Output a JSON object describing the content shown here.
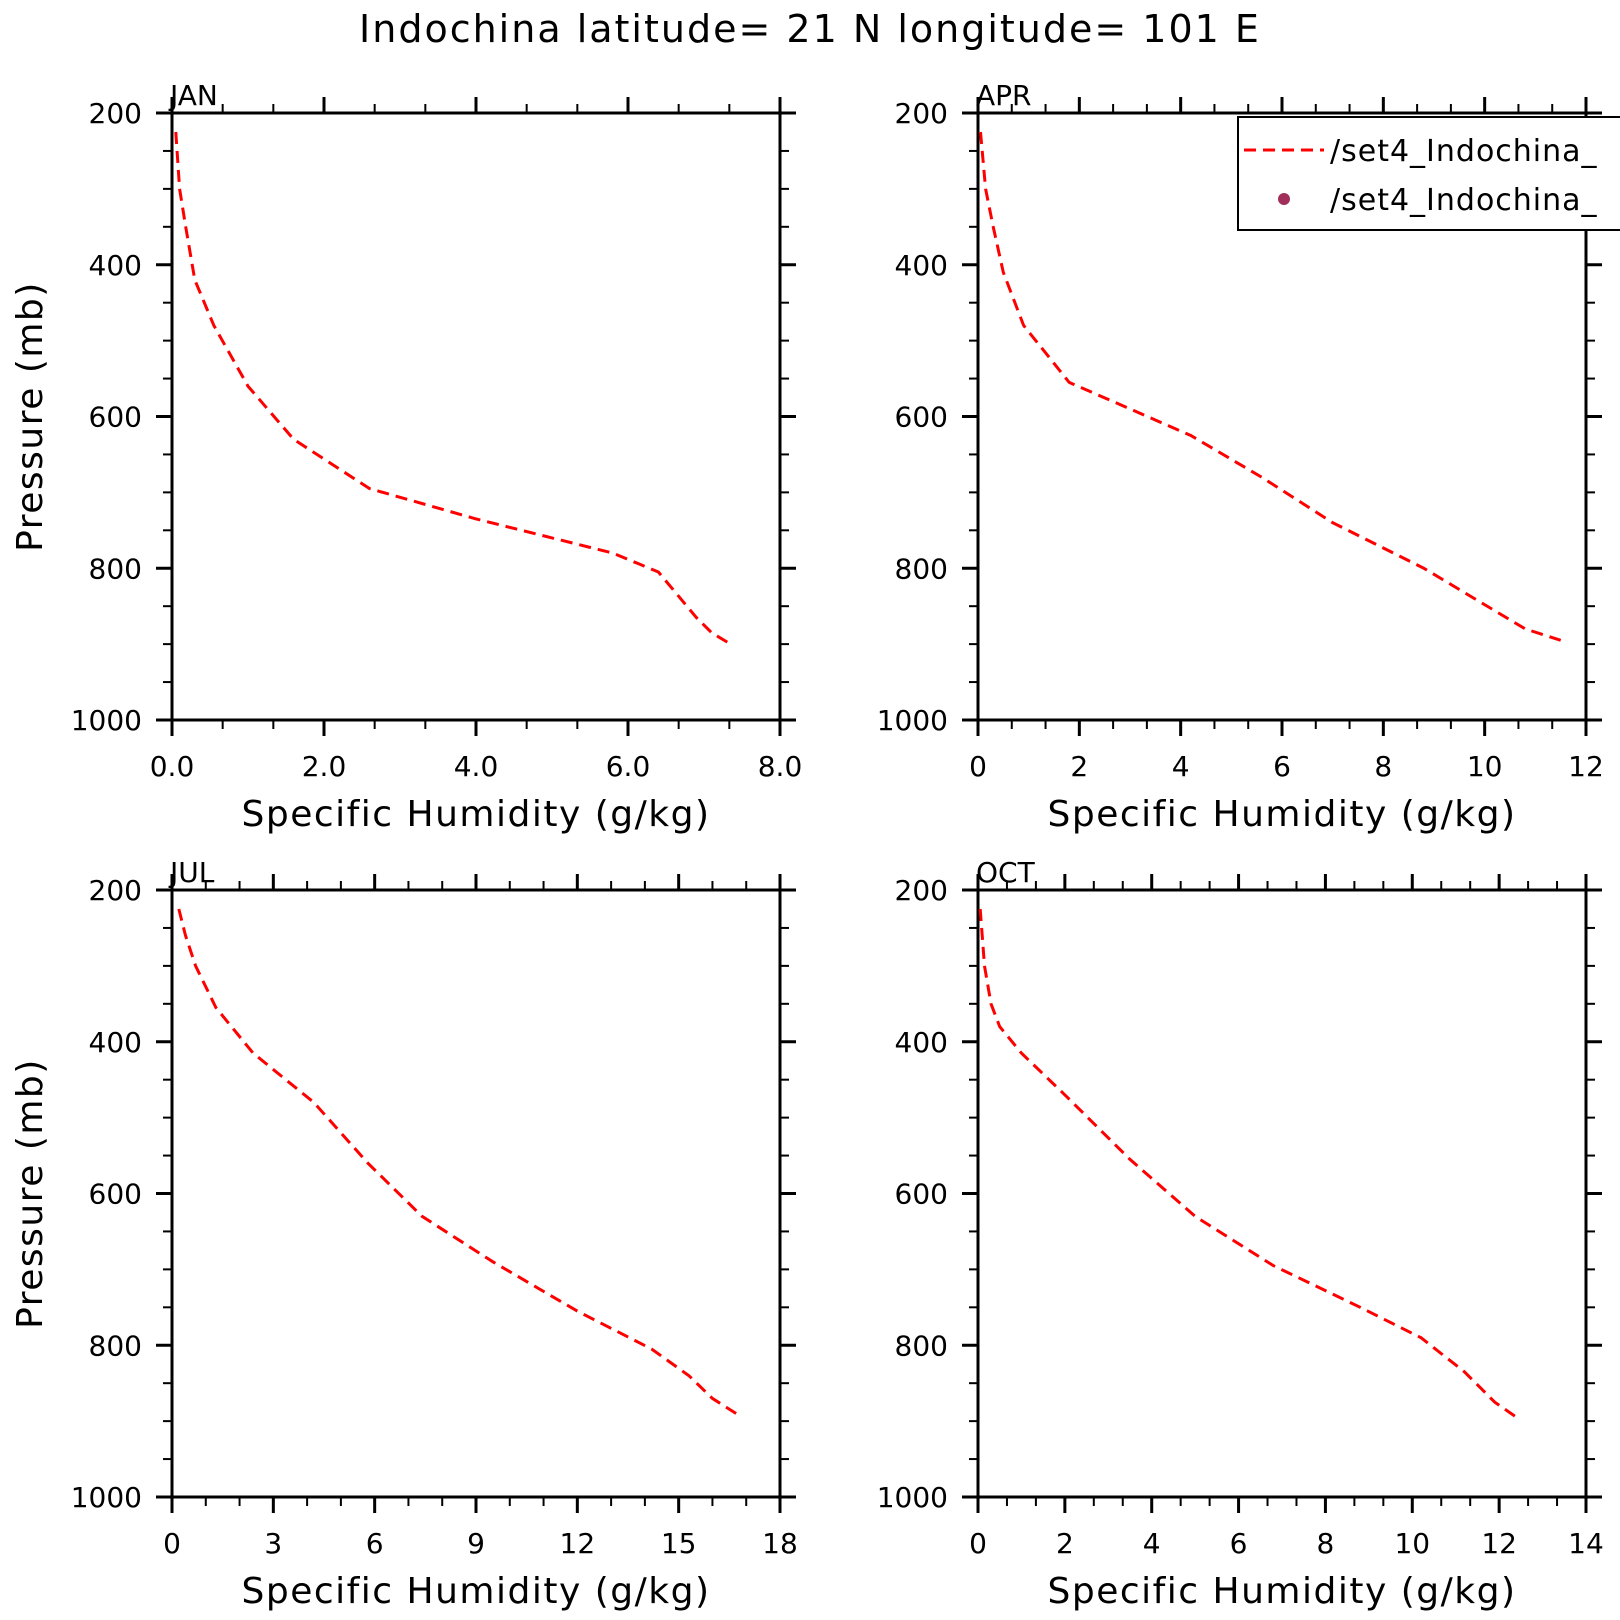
{
  "figure": {
    "title": "Indochina  latitude= 21 N longitude= 101 E"
  },
  "legend": {
    "entries": [
      {
        "label": "/set4_Indochina_",
        "style": "dashed-line",
        "color": "#ff0000"
      },
      {
        "label": "/set4_Indochina_",
        "style": "dot",
        "color": "#a0305a"
      }
    ]
  },
  "chart_data": [
    {
      "type": "line",
      "panel_label": "JAN",
      "xlabel": "Specific Humidity (g/kg)",
      "ylabel": "Pressure (mb)",
      "xlim": [
        0,
        8
      ],
      "ylim": [
        200,
        1000
      ],
      "y_inverted": true,
      "xticks": [
        0,
        2,
        4,
        6,
        8
      ],
      "xtick_labels": [
        "0.0",
        "2.0",
        "4.0",
        "6.0",
        "8.0"
      ],
      "yticks": [
        200,
        400,
        600,
        800,
        1000
      ],
      "ytick_labels": [
        "200",
        "400",
        "600",
        "800",
        "1000"
      ],
      "series": [
        {
          "color": "#ff0000",
          "style": "dashed",
          "x": [
            0.05,
            0.1,
            0.18,
            0.3,
            0.55,
            1.0,
            1.6,
            2.6,
            4.0,
            5.0,
            5.8,
            6.4,
            6.65,
            6.9,
            7.1,
            7.35
          ],
          "y": [
            225,
            300,
            350,
            420,
            480,
            560,
            630,
            695,
            735,
            760,
            780,
            805,
            835,
            865,
            885,
            900
          ]
        }
      ]
    },
    {
      "type": "line",
      "panel_label": "APR",
      "xlabel": "Specific Humidity (g/kg)",
      "ylabel": "",
      "xlim": [
        0,
        12
      ],
      "ylim": [
        200,
        1000
      ],
      "y_inverted": true,
      "xticks": [
        0,
        2,
        4,
        6,
        8,
        10,
        12
      ],
      "xtick_labels": [
        "0",
        "2",
        "4",
        "6",
        "8",
        "10",
        "12"
      ],
      "yticks": [
        200,
        400,
        600,
        800,
        1000
      ],
      "ytick_labels": [
        "200",
        "400",
        "600",
        "800",
        "1000"
      ],
      "series": [
        {
          "color": "#ff0000",
          "style": "dashed",
          "x": [
            0.05,
            0.15,
            0.3,
            0.5,
            0.9,
            1.8,
            3.0,
            4.2,
            5.6,
            7.0,
            8.8,
            9.8,
            10.8,
            11.5
          ],
          "y": [
            225,
            300,
            350,
            410,
            480,
            555,
            590,
            625,
            680,
            740,
            800,
            840,
            880,
            895
          ]
        }
      ]
    },
    {
      "type": "line",
      "panel_label": "JUL",
      "xlabel": "Specific Humidity (g/kg)",
      "ylabel": "Pressure (mb)",
      "xlim": [
        0,
        18
      ],
      "ylim": [
        200,
        1000
      ],
      "y_inverted": true,
      "xticks": [
        0,
        3,
        6,
        9,
        12,
        15,
        18
      ],
      "xtick_labels": [
        "0",
        "3",
        "6",
        "9",
        "12",
        "15",
        "18"
      ],
      "yticks": [
        200,
        400,
        600,
        800,
        1000
      ],
      "ytick_labels": [
        "200",
        "400",
        "600",
        "800",
        "1000"
      ],
      "series": [
        {
          "color": "#ff0000",
          "style": "dashed",
          "x": [
            0.2,
            0.4,
            0.7,
            1.3,
            2.4,
            4.2,
            5.8,
            7.4,
            9.5,
            12.0,
            14.2,
            15.3,
            16.0,
            16.7
          ],
          "y": [
            225,
            260,
            300,
            355,
            415,
            480,
            560,
            630,
            690,
            755,
            805,
            840,
            870,
            890
          ]
        }
      ]
    },
    {
      "type": "line",
      "panel_label": "OCT",
      "xlabel": "Specific Humidity (g/kg)",
      "ylabel": "",
      "xlim": [
        0,
        14
      ],
      "ylim": [
        200,
        1000
      ],
      "y_inverted": true,
      "xticks": [
        0,
        2,
        4,
        6,
        8,
        10,
        12,
        14
      ],
      "xtick_labels": [
        "0",
        "2",
        "4",
        "6",
        "8",
        "10",
        "12",
        "14"
      ],
      "yticks": [
        200,
        400,
        600,
        800,
        1000
      ],
      "ytick_labels": [
        "200",
        "400",
        "600",
        "800",
        "1000"
      ],
      "series": [
        {
          "color": "#ff0000",
          "style": "dashed",
          "x": [
            0.05,
            0.15,
            0.3,
            0.5,
            1.0,
            2.0,
            3.5,
            5.0,
            6.8,
            8.8,
            10.2,
            11.2,
            11.9,
            12.4
          ],
          "y": [
            225,
            300,
            350,
            380,
            415,
            470,
            555,
            630,
            695,
            750,
            790,
            835,
            875,
            895
          ]
        }
      ]
    }
  ]
}
